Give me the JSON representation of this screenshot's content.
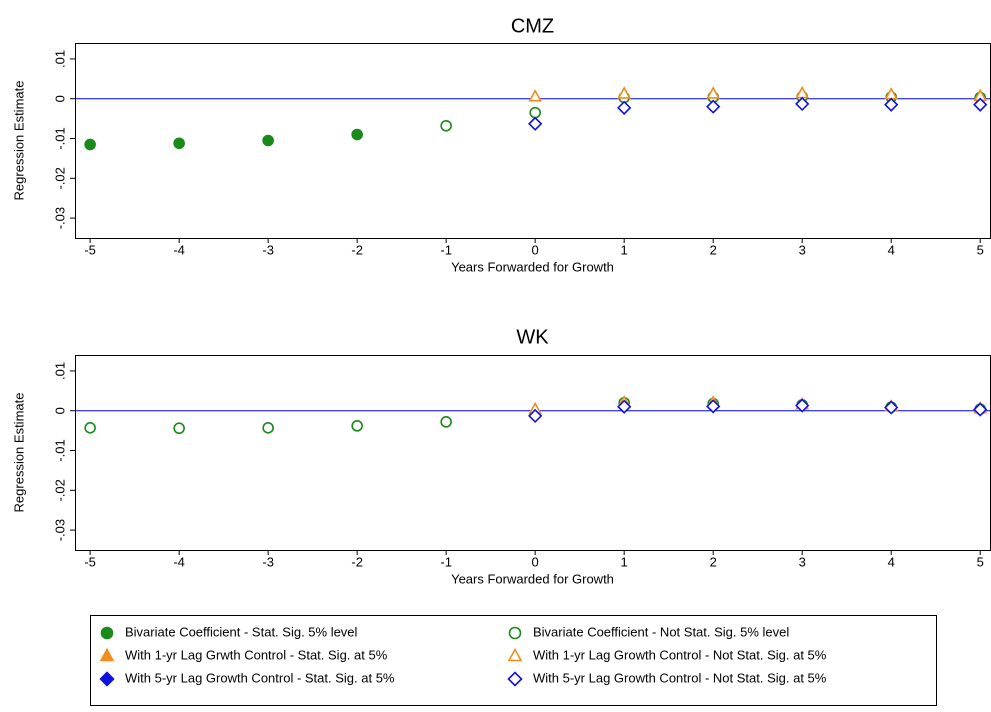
{
  "chart_data": [
    {
      "type": "scatter",
      "title": "CMZ",
      "xlabel": "Years Forwarded for Growth",
      "ylabel": "Regression Estimate",
      "x": [
        -5,
        -4,
        -3,
        -2,
        -1,
        0,
        1,
        2,
        3,
        4,
        5
      ],
      "xlim": [
        -5.17,
        5.11
      ],
      "xticks": [
        -5,
        -4,
        -3,
        -2,
        -1,
        0,
        1,
        2,
        3,
        4,
        5
      ],
      "ylim": [
        -0.035,
        0.014
      ],
      "yticks": [
        {
          "value": 0.01,
          "label": ".01"
        },
        0,
        {
          "value": -0.01,
          "label": "-.01"
        },
        {
          "value": -0.02,
          "label": "-.02"
        },
        {
          "value": -0.03,
          "label": "-.03"
        }
      ],
      "hline": 0,
      "hline_color": "#0000ff",
      "series": [
        {
          "name": "Bivariate Coefficient - Stat. Sig. 5% level",
          "color": "#1a8a1a",
          "marker": "circle",
          "filled": true,
          "values": [
            -0.0115,
            -0.0112,
            -0.0105,
            -0.009,
            null,
            null,
            null,
            null,
            null,
            null,
            null
          ]
        },
        {
          "name": "Bivariate Coefficient - Not Stat. Sig. 5% level",
          "color": "#1a8a1a",
          "marker": "circle",
          "filled": false,
          "values": [
            null,
            null,
            null,
            null,
            -0.0068,
            -0.0035,
            0.0003,
            0.0004,
            0.0005,
            0.0004,
            0.0003
          ]
        },
        {
          "name": "With 1-yr Lag Grwth Control - Stat. Sig. at 5%",
          "color": "#f28c1c",
          "marker": "triangle",
          "filled": true,
          "values": [
            null,
            null,
            null,
            null,
            null,
            null,
            null,
            null,
            null,
            null,
            null
          ]
        },
        {
          "name": "With 1-yr Lag Growth Control - Not Stat. Sig. at 5%",
          "color": "#f28c1c",
          "marker": "triangle",
          "filled": false,
          "values": [
            null,
            null,
            null,
            null,
            null,
            0.0005,
            0.0012,
            0.0012,
            0.0013,
            0.001,
            0.0006
          ]
        },
        {
          "name": "With 5-yr Lag Growth Control - Stat. Sig. at 5%",
          "color": "#1010e0",
          "marker": "diamond",
          "filled": true,
          "values": [
            null,
            null,
            null,
            null,
            null,
            null,
            null,
            null,
            null,
            null,
            null
          ]
        },
        {
          "name": "With 5-yr Lag Growth Control - Not Stat. Sig. at 5%",
          "color": "#1010e0",
          "marker": "diamond",
          "filled": false,
          "values": [
            null,
            null,
            null,
            null,
            null,
            -0.0063,
            -0.0023,
            -0.002,
            -0.0013,
            -0.0015,
            -0.0015
          ]
        }
      ]
    },
    {
      "type": "scatter",
      "title": "WK",
      "xlabel": "Years Forwarded for Growth",
      "ylabel": "Regression Estimate",
      "x": [
        -5,
        -4,
        -3,
        -2,
        -1,
        0,
        1,
        2,
        3,
        4,
        5
      ],
      "xlim": [
        -5.17,
        5.11
      ],
      "xticks": [
        -5,
        -4,
        -3,
        -2,
        -1,
        0,
        1,
        2,
        3,
        4,
        5
      ],
      "ylim": [
        -0.035,
        0.014
      ],
      "yticks": [
        {
          "value": 0.01,
          "label": ".01"
        },
        0,
        {
          "value": -0.01,
          "label": "-.01"
        },
        {
          "value": -0.02,
          "label": "-.02"
        },
        {
          "value": -0.03,
          "label": "-.03"
        }
      ],
      "hline": 0,
      "hline_color": "#0000ff",
      "series": [
        {
          "values": [
            null,
            null,
            null,
            null,
            null,
            null,
            null,
            null,
            null,
            null,
            null
          ]
        },
        {
          "values": [
            -0.0043,
            -0.0044,
            -0.0043,
            -0.0038,
            -0.0028,
            -0.001,
            0.002,
            0.0018,
            0.0015,
            0.0009,
            0.0004
          ]
        },
        {
          "values": [
            null,
            null,
            null,
            null,
            null,
            null,
            null,
            null,
            null,
            null,
            null
          ]
        },
        {
          "values": [
            null,
            null,
            null,
            null,
            null,
            0.0003,
            0.002,
            0.002,
            0.0015,
            0.001,
            0.0005
          ]
        },
        {
          "values": [
            null,
            null,
            null,
            null,
            null,
            null,
            null,
            null,
            null,
            null,
            null
          ]
        },
        {
          "values": [
            null,
            null,
            null,
            null,
            null,
            -0.0013,
            0.001,
            0.0011,
            0.0013,
            0.0008,
            0.0003
          ]
        }
      ]
    }
  ]
}
